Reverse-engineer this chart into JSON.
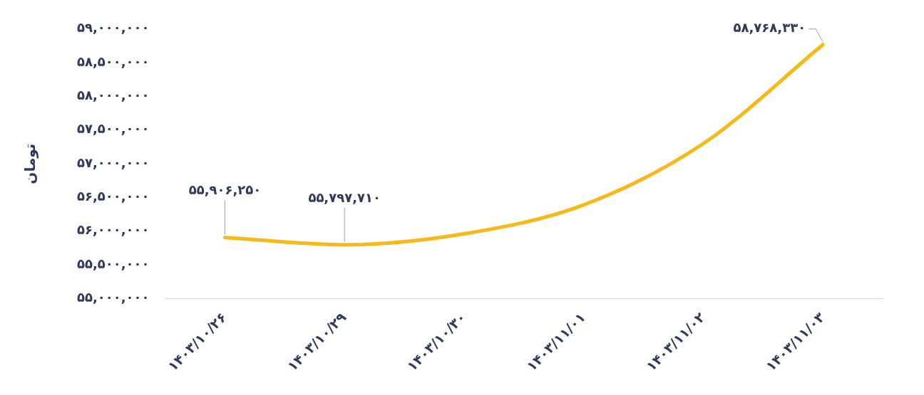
{
  "chart_data": {
    "type": "line",
    "ylabel": "تومان",
    "categories": [
      "۱۴۰۳/۱۰/۲۶",
      "۱۴۰۳/۱۰/۲۹",
      "۱۴۰۳/۱۰/۳۰",
      "۱۴۰۳/۱۱/۰۱",
      "۱۴۰۳/۱۱/۰۲",
      "۱۴۰۳/۱۱/۰۳"
    ],
    "series": [
      {
        "color": "#f7b917",
        "values": [
          55906250,
          55797710,
          55960000,
          56390000,
          57300000,
          58768330
        ],
        "value_labels": [
          "۵۵,۹۰۶,۲۵۰",
          "۵۵,۷۹۷,۷۱۰",
          null,
          null,
          null,
          "۵۸,۷۶۸,۳۳۰"
        ]
      }
    ],
    "ylim": [
      55000000,
      59000000
    ],
    "yticks": [
      {
        "value": 55000000,
        "label": "۵۵,۰۰۰,۰۰۰"
      },
      {
        "value": 55500000,
        "label": "۵۵,۵۰۰,۰۰۰"
      },
      {
        "value": 56000000,
        "label": "۵۶,۰۰۰,۰۰۰"
      },
      {
        "value": 56500000,
        "label": "۵۶,۵۰۰,۰۰۰"
      },
      {
        "value": 57000000,
        "label": "۵۷,۰۰۰,۰۰۰"
      },
      {
        "value": 57500000,
        "label": "۵۷,۵۰۰,۰۰۰"
      },
      {
        "value": 58000000,
        "label": "۵۸,۰۰۰,۰۰۰"
      },
      {
        "value": 58500000,
        "label": "۵۸,۵۰۰,۰۰۰"
      },
      {
        "value": 59000000,
        "label": "۵۹,۰۰۰,۰۰۰"
      }
    ],
    "grid": false,
    "legend": false,
    "marker": "none",
    "line_style": "solid"
  }
}
